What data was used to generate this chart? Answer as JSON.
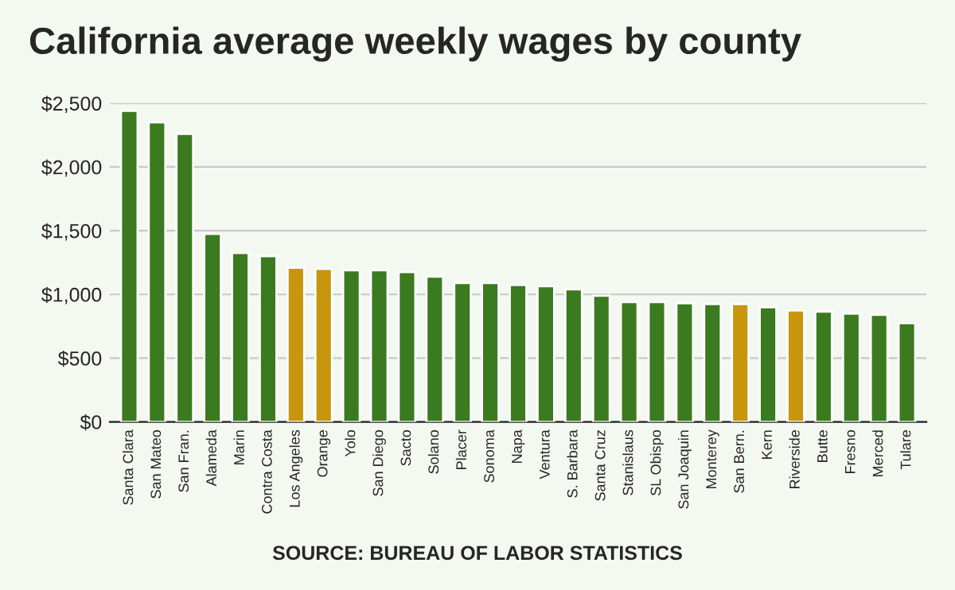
{
  "chart_data": {
    "type": "bar",
    "title": "California average weekly wages by county",
    "categories": [
      "Santa Clara",
      "San Mateo",
      "San Fran.",
      "Alameda",
      "Marin",
      "Contra Costa",
      "Los Angeles",
      "Orange",
      "Yolo",
      "San Diego",
      "Sacto",
      "Solano",
      "Placer",
      "Sonoma",
      "Napa",
      "Ventura",
      "S. Barbara",
      "Santa Cruz",
      "Stanislaus",
      "SL Obispo",
      "San Joaquin",
      "Monterey",
      "San Bern.",
      "Kern",
      "Riverside",
      "Butte",
      "Fresno",
      "Merced",
      "Tulare"
    ],
    "values": [
      2440,
      2350,
      2260,
      1475,
      1325,
      1300,
      1210,
      1200,
      1190,
      1190,
      1175,
      1140,
      1090,
      1090,
      1075,
      1065,
      1040,
      990,
      940,
      940,
      930,
      925,
      925,
      900,
      875,
      865,
      850,
      840,
      775
    ],
    "colors": [
      "#3b7a1f",
      "#3b7a1f",
      "#3b7a1f",
      "#3b7a1f",
      "#3b7a1f",
      "#3b7a1f",
      "#c8960c",
      "#c8960c",
      "#3b7a1f",
      "#3b7a1f",
      "#3b7a1f",
      "#3b7a1f",
      "#3b7a1f",
      "#3b7a1f",
      "#3b7a1f",
      "#3b7a1f",
      "#3b7a1f",
      "#3b7a1f",
      "#3b7a1f",
      "#3b7a1f",
      "#3b7a1f",
      "#3b7a1f",
      "#c8960c",
      "#3b7a1f",
      "#c8960c",
      "#3b7a1f",
      "#3b7a1f",
      "#3b7a1f",
      "#3b7a1f"
    ],
    "ylim": [
      0,
      2500
    ],
    "yticks": [
      {
        "value": 0,
        "label": "$0"
      },
      {
        "value": 500,
        "label": "$500"
      },
      {
        "value": 1000,
        "label": "$1,000"
      },
      {
        "value": 1500,
        "label": "$1,500"
      },
      {
        "value": 2000,
        "label": "$2,000"
      },
      {
        "value": 2500,
        "label": "$2,500"
      }
    ],
    "grid": "y",
    "annotations": [
      "SOURCE: BUREAU OF LABOR STATISTICS"
    ]
  }
}
